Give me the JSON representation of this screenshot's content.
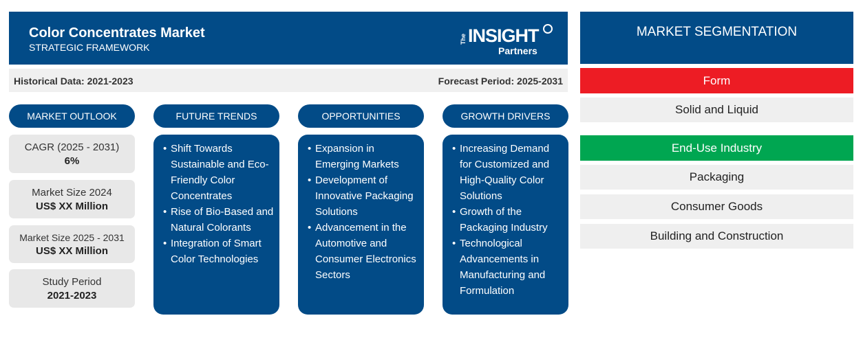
{
  "header": {
    "title": "Color Concentrates Market",
    "subtitle": "STRATEGIC FRAMEWORK",
    "logo_text": "The INSIGHT Partners"
  },
  "period": {
    "historical": "Historical Data: 2021-2023",
    "forecast": "Forecast Period: 2025-2031"
  },
  "columns": [
    {
      "label": "MARKET OUTLOOK"
    },
    {
      "label": "FUTURE TRENDS",
      "items": [
        "Shift Towards Sustainable and Eco-Friendly Color Concentrates",
        "Rise of Bio-Based and Natural Colorants",
        "Integration of Smart Color Technologies"
      ]
    },
    {
      "label": "OPPORTUNITIES",
      "items": [
        "Expansion in Emerging Markets",
        "Development of Innovative Packaging Solutions",
        "Advancement in the Automotive and Consumer Electronics Sectors"
      ]
    },
    {
      "label": "GROWTH DRIVERS",
      "items": [
        "Increasing Demand for Customized and High-Quality Color Solutions",
        "Growth of the Packaging Industry",
        "Technological Advancements in Manufacturing and Formulation"
      ]
    }
  ],
  "outlook": [
    {
      "label": "CAGR (2025 - 2031)",
      "value": "6%"
    },
    {
      "label": "Market Size 2024",
      "value": "US$ XX Million"
    },
    {
      "label": "Market Size 2025 - 2031",
      "value": "US$ XX Million"
    },
    {
      "label": "Study Period",
      "value": "2021-2023"
    }
  ],
  "segmentation": {
    "title": "MARKET SEGMENTATION",
    "groups": [
      {
        "name": "Form",
        "color": "#ed1c24",
        "items": [
          "Solid and Liquid"
        ]
      },
      {
        "name": "End-Use Industry",
        "color": "#00a651",
        "items": [
          "Packaging",
          "Consumer Goods",
          "Building and Construction"
        ]
      }
    ]
  },
  "colors": {
    "primary": "#024b87",
    "panel": "#e8e8e8"
  }
}
